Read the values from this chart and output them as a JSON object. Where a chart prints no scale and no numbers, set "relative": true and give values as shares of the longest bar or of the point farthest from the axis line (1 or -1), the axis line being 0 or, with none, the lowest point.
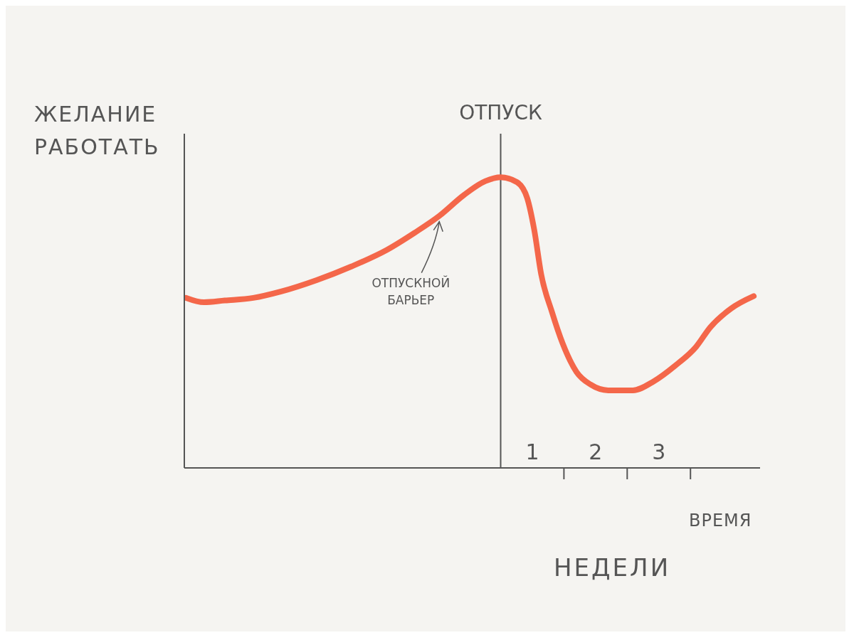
{
  "chart_data": {
    "type": "line",
    "relative": true,
    "ylabel": "ЖЕЛАНИЕ РАБОТАТЬ",
    "xlabel": "ВРЕМЯ",
    "x": [
      -4.97,
      -4.69,
      -4.36,
      -3.91,
      -3.47,
      -2.91,
      -2.36,
      -1.8,
      -1.36,
      -0.97,
      -0.58,
      -0.24,
      0,
      0.26,
      0.42,
      0.53,
      0.64,
      0.81,
      0.98,
      1.2,
      1.42,
      1.7,
      2.09,
      2.42,
      2.76,
      3.09,
      3.31,
      3.64,
      4.0
    ],
    "series": [
      {
        "color": "#f4674a",
        "values": [
          0.585,
          0.57,
          0.576,
          0.585,
          0.607,
          0.646,
          0.693,
          0.75,
          0.809,
          0.867,
          0.939,
          0.987,
          1.0,
          0.983,
          0.928,
          0.82,
          0.667,
          0.537,
          0.428,
          0.33,
          0.287,
          0.267,
          0.267,
          0.298,
          0.352,
          0.417,
          0.483,
          0.548,
          0.591
        ]
      }
    ],
    "xlim": [
      -5,
      4.1
    ],
    "xticks": [
      {
        "value": 0.5,
        "label": "1"
      },
      {
        "value": 1,
        "label": null
      },
      {
        "value": 1.5,
        "label": "2"
      },
      {
        "value": 2,
        "label": null
      },
      {
        "value": 2.5,
        "label": "3"
      },
      {
        "value": 3,
        "label": null
      }
    ],
    "ref_lines": [
      {
        "axis": "x",
        "value": 0,
        "label": "ОТПУСК",
        "color": "#555555"
      }
    ],
    "annotations": [
      {
        "text": "ОТПУСКНОЙ БАРЬЕР",
        "x": -0.97,
        "y": 0.867
      },
      "НЕДЕЛИ"
    ]
  }
}
